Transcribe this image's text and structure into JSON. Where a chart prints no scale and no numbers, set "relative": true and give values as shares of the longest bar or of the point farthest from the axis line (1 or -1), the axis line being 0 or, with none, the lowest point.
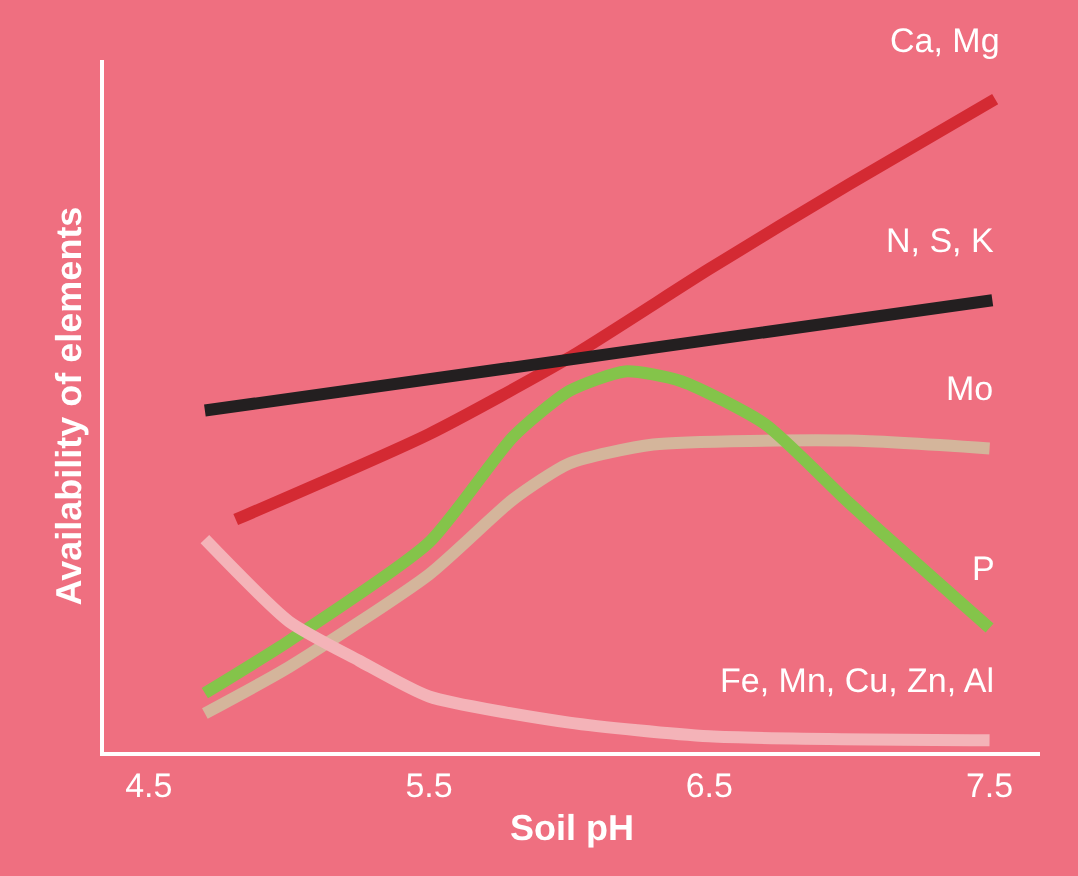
{
  "chart_data": {
    "type": "line",
    "relative": true,
    "xlabel": "Soil pH",
    "ylabel": "Availability of elements",
    "xlim": [
      4.34,
      7.68
    ],
    "xticks": [
      4.5,
      5.5,
      6.5,
      7.5
    ],
    "tick_labels": "x",
    "grid": false,
    "legend": false,
    "marker": "none",
    "line_style": "solid",
    "series": [
      {
        "name": "Ca, Mg",
        "color": "#d42a33",
        "x": [
          4.81,
          5.5,
          6.0,
          6.5,
          7.0,
          7.52
        ],
        "values": [
          0.356,
          0.487,
          0.604,
          0.74,
          0.87,
          1.0
        ]
      },
      {
        "name": "N, S, K",
        "color": "#231f20",
        "x": [
          4.7,
          6.0,
          7.51
        ],
        "values": [
          0.523,
          0.601,
          0.692
        ]
      },
      {
        "name": "Mo",
        "color": "#d4b59b",
        "x": [
          4.7,
          5.0,
          5.5,
          5.8,
          6.0,
          6.3,
          7.0,
          7.5
        ],
        "values": [
          0.059,
          0.13,
          0.272,
          0.387,
          0.442,
          0.471,
          0.477,
          0.465
        ]
      },
      {
        "name": "P",
        "color": "#84c44a",
        "x": [
          4.7,
          5.0,
          5.5,
          5.8,
          6.0,
          6.2,
          6.4,
          6.7,
          7.0,
          7.5
        ],
        "values": [
          0.09,
          0.17,
          0.321,
          0.483,
          0.553,
          0.583,
          0.568,
          0.502,
          0.381,
          0.19
        ]
      },
      {
        "name": "Fe, Mn, Cu, Zn, Al",
        "color": "#f4b3b8",
        "x": [
          4.7,
          5.0,
          5.25,
          5.5,
          6.0,
          6.5,
          7.5
        ],
        "values": [
          0.326,
          0.2,
          0.14,
          0.085,
          0.045,
          0.024,
          0.018
        ]
      }
    ]
  }
}
